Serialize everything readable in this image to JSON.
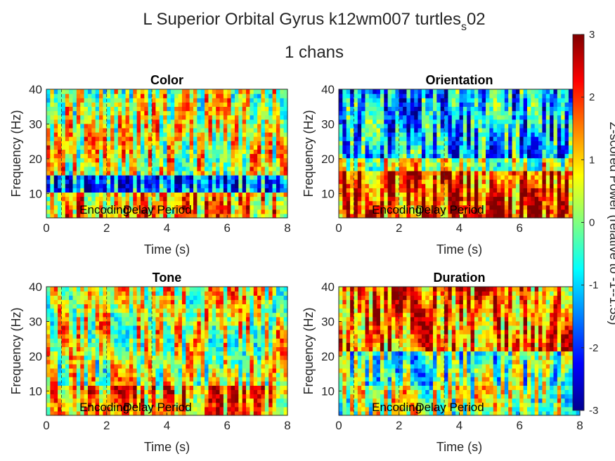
{
  "figure": {
    "title_line1": "L Superior Orbital Gyrus k12wm007 turtles",
    "title_sub": "s",
    "title_suffix": "02",
    "title_line2": "1 chans"
  },
  "colorbar": {
    "label": "Z-scored Power (relative to -1--1.5s)",
    "ticks": [
      "3",
      "2",
      "1",
      "0",
      "-1",
      "-2",
      "-3"
    ],
    "colormap": "jet",
    "clim": [
      -3,
      3
    ]
  },
  "chart_data": [
    {
      "type": "heatmap",
      "title": "Color",
      "xlabel": "Time (s)",
      "ylabel": "Frequency (Hz)",
      "xlim": [
        0,
        8
      ],
      "ylim": [
        3,
        40
      ],
      "xticks": [
        "0",
        "2",
        "4",
        "6",
        "8"
      ],
      "yticks": [
        "10",
        "20",
        "30",
        "40"
      ],
      "annotations": [
        "Encoding",
        "Delay Period"
      ],
      "band_means": [
        {
          "freq_range": [
            30,
            40
          ],
          "mean_z": 0.5
        },
        {
          "freq_range": [
            15,
            30
          ],
          "mean_z": 0.6
        },
        {
          "freq_range": [
            10,
            15
          ],
          "mean_z": -1.5
        },
        {
          "freq_range": [
            3,
            10
          ],
          "mean_z": 1.2
        }
      ]
    },
    {
      "type": "heatmap",
      "title": "Orientation",
      "xlabel": "Time (s)",
      "ylabel": "Frequency (Hz)",
      "xlim": [
        0,
        8
      ],
      "ylim": [
        3,
        40
      ],
      "xticks": [
        "0",
        "2",
        "4",
        "6",
        "8"
      ],
      "yticks": [
        "10",
        "20",
        "30",
        "40"
      ],
      "annotations": [
        "Encoding",
        "Delay Period"
      ],
      "band_means": [
        {
          "freq_range": [
            20,
            40
          ],
          "mean_z": -1.2
        },
        {
          "freq_range": [
            16,
            20
          ],
          "mean_z": 0.5
        },
        {
          "freq_range": [
            3,
            16
          ],
          "mean_z": 2.0
        }
      ]
    },
    {
      "type": "heatmap",
      "title": "Tone",
      "xlabel": "Time (s)",
      "ylabel": "Frequency (Hz)",
      "xlim": [
        0,
        8
      ],
      "ylim": [
        3,
        40
      ],
      "xticks": [
        "0",
        "2",
        "4",
        "6",
        "8"
      ],
      "yticks": [
        "10",
        "20",
        "30",
        "40"
      ],
      "annotations": [
        "Encoding",
        "Delay Period"
      ],
      "band_means": [
        {
          "freq_range": [
            25,
            40
          ],
          "mean_z": 0.6
        },
        {
          "freq_range": [
            12,
            25
          ],
          "mean_z": 0.4
        },
        {
          "freq_range": [
            3,
            12
          ],
          "mean_z": 1.4
        }
      ]
    },
    {
      "type": "heatmap",
      "title": "Duration",
      "xlabel": "Time (s)",
      "ylabel": "Frequency (Hz)",
      "xlim": [
        0,
        8
      ],
      "ylim": [
        3,
        40
      ],
      "xticks": [
        "0",
        "2",
        "4",
        "6",
        "8"
      ],
      "yticks": [
        "10",
        "20",
        "30",
        "40"
      ],
      "annotations": [
        "Encoding",
        "Delay Period"
      ],
      "band_means": [
        {
          "freq_range": [
            22,
            40
          ],
          "mean_z": 1.6
        },
        {
          "freq_range": [
            12,
            22
          ],
          "mean_z": -0.3
        },
        {
          "freq_range": [
            3,
            12
          ],
          "mean_z": 0.3
        }
      ]
    }
  ]
}
